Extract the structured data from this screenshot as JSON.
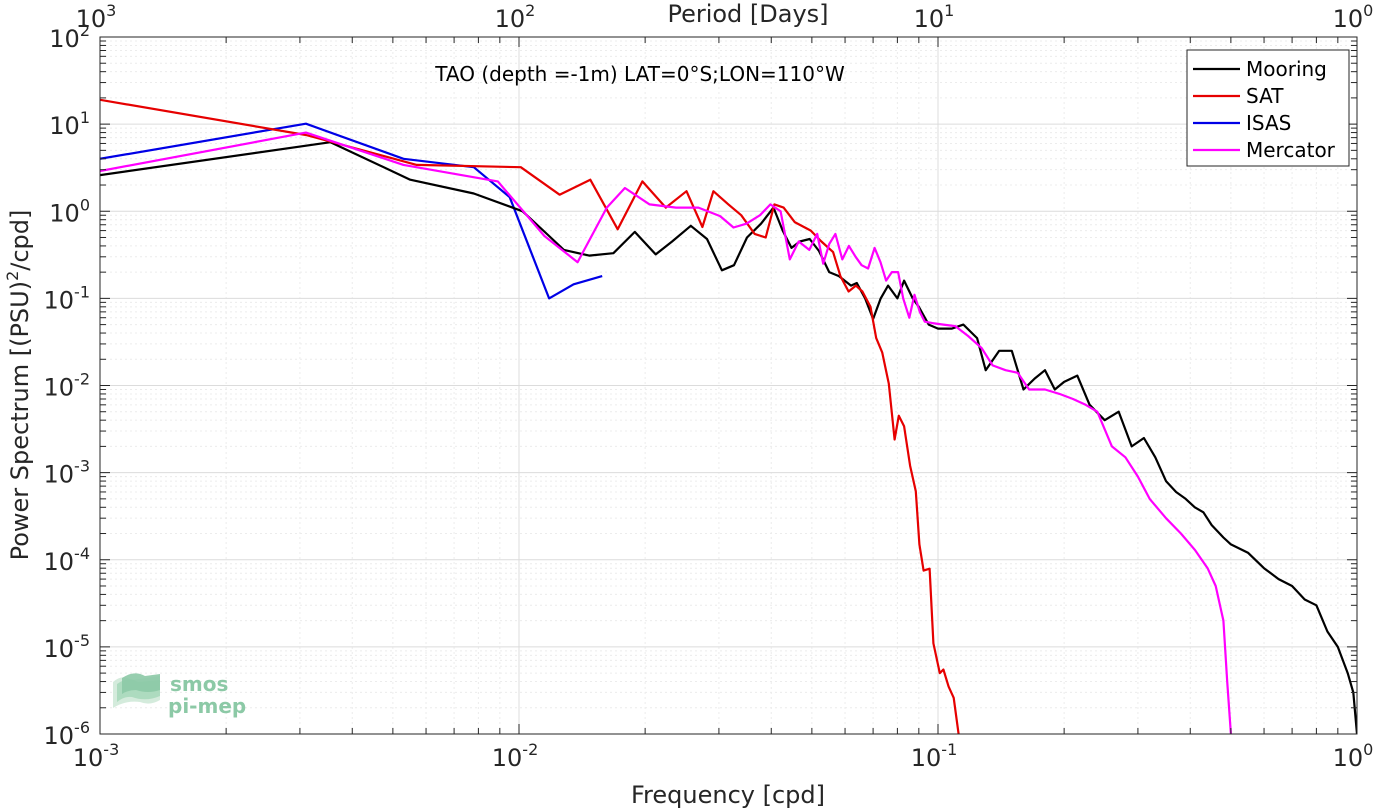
{
  "chart_data": {
    "type": "line",
    "title": "TAO (depth =-1m) LAT=0°S;LON=110°W",
    "xlabel": "Frequency [cpd]",
    "ylabel": "Power Spectrum [(PSU)^2/cpd]",
    "x2label": "Period [Days]",
    "xscale": "log",
    "yscale": "log",
    "xlim": [
      0.001,
      1
    ],
    "ylim": [
      1e-06,
      100
    ],
    "grid": true,
    "legend_position": "top-right",
    "x_ticks": [
      {
        "base": "10",
        "exp": "-3"
      },
      {
        "base": "10",
        "exp": "-2"
      },
      {
        "base": "10",
        "exp": "-1"
      },
      {
        "base": "10",
        "exp": "0"
      }
    ],
    "x2_ticks": [
      {
        "base": "10",
        "exp": "3"
      },
      {
        "base": "10",
        "exp": "2"
      },
      {
        "base": "10",
        "exp": "1"
      },
      {
        "base": "10",
        "exp": "0"
      }
    ],
    "y_ticks": [
      {
        "base": "10",
        "exp": "2"
      },
      {
        "base": "10",
        "exp": "1"
      },
      {
        "base": "10",
        "exp": "0"
      },
      {
        "base": "10",
        "exp": "-1"
      },
      {
        "base": "10",
        "exp": "-2"
      },
      {
        "base": "10",
        "exp": "-3"
      },
      {
        "base": "10",
        "exp": "-4"
      },
      {
        "base": "10",
        "exp": "-5"
      },
      {
        "base": "10",
        "exp": "-6"
      }
    ],
    "series": [
      {
        "name": "Mooring",
        "color": "#000000",
        "points": [
          [
            0.001,
            2.6
          ],
          [
            0.00355,
            6.2
          ],
          [
            0.0055,
            2.3
          ],
          [
            0.0078,
            1.6
          ],
          [
            0.0102,
            1.0
          ],
          [
            0.0118,
            0.52
          ],
          [
            0.0128,
            0.36
          ],
          [
            0.0147,
            0.31
          ],
          [
            0.0168,
            0.33
          ],
          [
            0.0189,
            0.58
          ],
          [
            0.0212,
            0.32
          ],
          [
            0.0232,
            0.45
          ],
          [
            0.0257,
            0.68
          ],
          [
            0.0281,
            0.48
          ],
          [
            0.0305,
            0.21
          ],
          [
            0.0326,
            0.24
          ],
          [
            0.035,
            0.5
          ],
          [
            0.0378,
            0.72
          ],
          [
            0.0405,
            1.1
          ],
          [
            0.0426,
            0.6
          ],
          [
            0.0447,
            0.38
          ],
          [
            0.0468,
            0.45
          ],
          [
            0.0494,
            0.48
          ],
          [
            0.052,
            0.35
          ],
          [
            0.055,
            0.2
          ],
          [
            0.058,
            0.18
          ],
          [
            0.062,
            0.14
          ],
          [
            0.064,
            0.15
          ],
          [
            0.067,
            0.1
          ],
          [
            0.07,
            0.058
          ],
          [
            0.073,
            0.1
          ],
          [
            0.076,
            0.14
          ],
          [
            0.08,
            0.1
          ],
          [
            0.083,
            0.16
          ],
          [
            0.087,
            0.1
          ],
          [
            0.09,
            0.08
          ],
          [
            0.095,
            0.05
          ],
          [
            0.1,
            0.045
          ],
          [
            0.108,
            0.045
          ],
          [
            0.115,
            0.05
          ],
          [
            0.124,
            0.035
          ],
          [
            0.13,
            0.015
          ],
          [
            0.14,
            0.025
          ],
          [
            0.15,
            0.025
          ],
          [
            0.16,
            0.009
          ],
          [
            0.17,
            0.012
          ],
          [
            0.18,
            0.015
          ],
          [
            0.19,
            0.009
          ],
          [
            0.2,
            0.011
          ],
          [
            0.215,
            0.013
          ],
          [
            0.23,
            0.006
          ],
          [
            0.25,
            0.004
          ],
          [
            0.27,
            0.005
          ],
          [
            0.29,
            0.002
          ],
          [
            0.31,
            0.0025
          ],
          [
            0.33,
            0.0015
          ],
          [
            0.35,
            0.0008
          ],
          [
            0.37,
            0.0006
          ],
          [
            0.39,
            0.0005
          ],
          [
            0.41,
            0.0004
          ],
          [
            0.43,
            0.00035
          ],
          [
            0.45,
            0.00025
          ],
          [
            0.48,
            0.00018
          ],
          [
            0.5,
            0.00015
          ],
          [
            0.55,
            0.00012
          ],
          [
            0.6,
            8e-05
          ],
          [
            0.65,
            6e-05
          ],
          [
            0.7,
            5e-05
          ],
          [
            0.75,
            3.5e-05
          ],
          [
            0.8,
            3e-05
          ],
          [
            0.85,
            1.5e-05
          ],
          [
            0.9,
            1e-05
          ],
          [
            0.95,
            5e-06
          ],
          [
            0.98,
            3e-06
          ],
          [
            1.0,
            1e-06
          ]
        ]
      },
      {
        "name": "SAT",
        "color": "#e60000",
        "points": [
          [
            0.001,
            19
          ],
          [
            0.0031,
            7.5
          ],
          [
            0.0057,
            3.4
          ],
          [
            0.0101,
            3.2
          ],
          [
            0.0125,
            1.55
          ],
          [
            0.0148,
            2.3
          ],
          [
            0.0172,
            0.62
          ],
          [
            0.0197,
            2.2
          ],
          [
            0.0224,
            1.1
          ],
          [
            0.0251,
            1.7
          ],
          [
            0.0274,
            0.66
          ],
          [
            0.0291,
            1.7
          ],
          [
            0.0316,
            1.2
          ],
          [
            0.0339,
            0.9
          ],
          [
            0.0365,
            0.55
          ],
          [
            0.0388,
            0.5
          ],
          [
            0.0407,
            1.2
          ],
          [
            0.0428,
            1.1
          ],
          [
            0.0455,
            0.75
          ],
          [
            0.0497,
            0.6
          ],
          [
            0.0527,
            0.45
          ],
          [
            0.0562,
            0.34
          ],
          [
            0.0585,
            0.18
          ],
          [
            0.0612,
            0.12
          ],
          [
            0.0637,
            0.14
          ],
          [
            0.066,
            0.12
          ],
          [
            0.069,
            0.08
          ],
          [
            0.0712,
            0.035
          ],
          [
            0.0736,
            0.024
          ],
          [
            0.0763,
            0.0105
          ],
          [
            0.0788,
            0.0024
          ],
          [
            0.0806,
            0.0045
          ],
          [
            0.083,
            0.0034
          ],
          [
            0.0858,
            0.0012
          ],
          [
            0.0885,
            0.00061
          ],
          [
            0.0903,
            0.00015
          ],
          [
            0.0924,
            7.5e-05
          ],
          [
            0.0955,
            7.9e-05
          ],
          [
            0.0975,
            1.1e-05
          ],
          [
            0.101,
            5e-06
          ],
          [
            0.103,
            5.5e-06
          ],
          [
            0.106,
            3.5e-06
          ],
          [
            0.109,
            2.6e-06
          ],
          [
            0.112,
            1e-06
          ]
        ]
      },
      {
        "name": "ISAS",
        "color": "#0000e6",
        "points": [
          [
            0.001,
            4.0
          ],
          [
            0.0031,
            10.1
          ],
          [
            0.0053,
            4.0
          ],
          [
            0.0078,
            3.2
          ],
          [
            0.0095,
            1.45
          ],
          [
            0.0118,
            0.1
          ],
          [
            0.0135,
            0.145
          ],
          [
            0.0158,
            0.18
          ]
        ]
      },
      {
        "name": "Mercator",
        "color": "#ff00ff",
        "points": [
          [
            0.001,
            2.9
          ],
          [
            0.0031,
            8.0
          ],
          [
            0.0053,
            3.4
          ],
          [
            0.0089,
            2.2
          ],
          [
            0.0115,
            0.52
          ],
          [
            0.0138,
            0.26
          ],
          [
            0.0162,
            1.1
          ],
          [
            0.0179,
            1.85
          ],
          [
            0.0205,
            1.2
          ],
          [
            0.0237,
            1.1
          ],
          [
            0.0268,
            1.1
          ],
          [
            0.0302,
            0.88
          ],
          [
            0.0325,
            0.65
          ],
          [
            0.0349,
            0.72
          ],
          [
            0.0376,
            0.9
          ],
          [
            0.0398,
            1.2
          ],
          [
            0.0421,
            1.0
          ],
          [
            0.0443,
            0.28
          ],
          [
            0.0465,
            0.45
          ],
          [
            0.0493,
            0.36
          ],
          [
            0.0515,
            0.55
          ],
          [
            0.0532,
            0.25
          ],
          [
            0.055,
            0.42
          ],
          [
            0.0569,
            0.55
          ],
          [
            0.0591,
            0.28
          ],
          [
            0.0613,
            0.4
          ],
          [
            0.0636,
            0.3
          ],
          [
            0.0657,
            0.24
          ],
          [
            0.0681,
            0.22
          ],
          [
            0.0706,
            0.38
          ],
          [
            0.0729,
            0.26
          ],
          [
            0.0752,
            0.16
          ],
          [
            0.0776,
            0.2
          ],
          [
            0.0803,
            0.2
          ],
          [
            0.0826,
            0.1
          ],
          [
            0.0854,
            0.06
          ],
          [
            0.0879,
            0.11
          ],
          [
            0.0905,
            0.07
          ],
          [
            0.093,
            0.054
          ],
          [
            0.097,
            0.052
          ],
          [
            0.103,
            0.05
          ],
          [
            0.11,
            0.048
          ],
          [
            0.118,
            0.037
          ],
          [
            0.127,
            0.027
          ],
          [
            0.135,
            0.017
          ],
          [
            0.145,
            0.015
          ],
          [
            0.155,
            0.014
          ],
          [
            0.165,
            0.009
          ],
          [
            0.18,
            0.009
          ],
          [
            0.195,
            0.008
          ],
          [
            0.21,
            0.007
          ],
          [
            0.225,
            0.006
          ],
          [
            0.24,
            0.005
          ],
          [
            0.26,
            0.002
          ],
          [
            0.28,
            0.0015
          ],
          [
            0.3,
            0.0009
          ],
          [
            0.32,
            0.0005
          ],
          [
            0.35,
            0.0003
          ],
          [
            0.38,
            0.0002
          ],
          [
            0.41,
            0.00013
          ],
          [
            0.44,
            8e-05
          ],
          [
            0.46,
            5e-05
          ],
          [
            0.48,
            2e-05
          ],
          [
            0.49,
            4e-06
          ],
          [
            0.5,
            1e-06
          ]
        ]
      }
    ]
  },
  "logo": {
    "line1": "smos",
    "line2": "pi-mep",
    "color": "#8cc9a6"
  }
}
